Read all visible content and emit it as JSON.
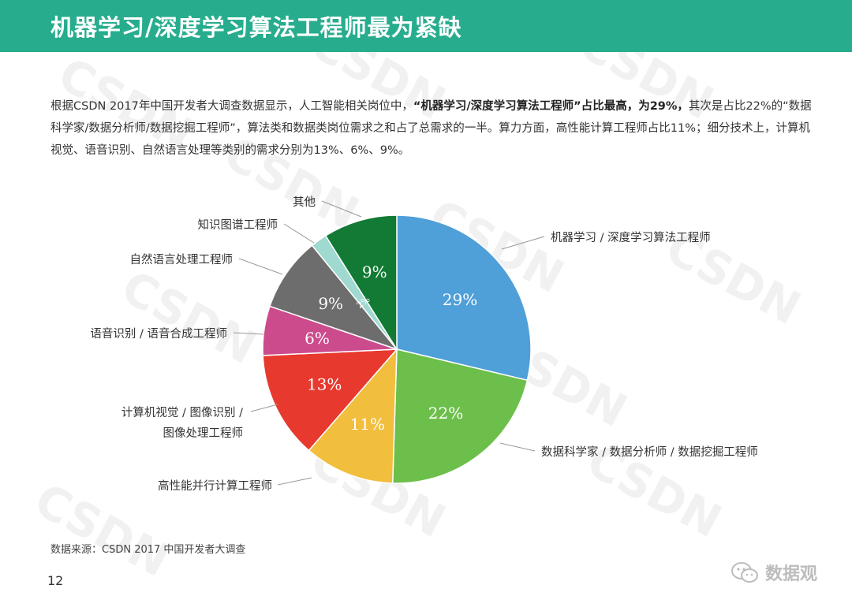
{
  "header": {
    "title": "机器学习/深度学习算法工程师最为紧缺"
  },
  "intro": {
    "part1": "根据CSDN 2017年中国开发者大调查数据显示，人工智能相关岗位中，",
    "bold1": "“机器学习/深度学习算法工程师”占比最高，为29%，",
    "part2": "其次是占比22%的“数据科学家/数据分析师/数据挖掘工程师”，算法类和数据类岗位需求之和占了总需求的一半。算力方面，高性能计算工程师占比11%；细分技术上，计算机视觉、语音识别、自然语言处理等类别的需求分别为13%、6%、9%。"
  },
  "chart_data": {
    "type": "pie",
    "start_angle_deg": 0,
    "direction": "clockwise",
    "categories": [
      "机器学习 / 深度学习算法工程师",
      "数据科学家 / 数据分析师 / 数据挖掘工程师",
      "高性能并行计算工程师",
      "计算机视觉 / 图像识别 / 图像处理工程师",
      "语音识别 / 语音合成工程师",
      "自然语言处理工程师",
      "知识图谱工程师",
      "其他"
    ],
    "display_labels": [
      [
        "机器学习 / 深度学习算法工程师"
      ],
      [
        "数据科学家 / 数据分析师 / 数据挖掘工程师"
      ],
      [
        "高性能并行计算工程师"
      ],
      [
        "计算机视觉 / 图像识别 /",
        "图像处理工程师"
      ],
      [
        "语音识别 / 语音合成工程师"
      ],
      [
        "自然语言处理工程师"
      ],
      [
        "知识图谱工程师"
      ],
      [
        "其他"
      ]
    ],
    "values": [
      29,
      22,
      11,
      13,
      6,
      9,
      2,
      9
    ],
    "data_labels": [
      "29%",
      "22%",
      "11%",
      "13%",
      "6%",
      "9%",
      "2%",
      "9%"
    ],
    "colors": [
      "#4f9fd8",
      "#6cbf4a",
      "#f2be3e",
      "#e8392f",
      "#cc4b8c",
      "#6d6d6d",
      "#9fd9d0",
      "#127a34"
    ]
  },
  "source": "数据来源：CSDN  2017 中国开发者大调查",
  "page_number": "12",
  "brand": {
    "icon": "wechat-icon",
    "name": "数据观"
  },
  "watermark_text": "CSDN"
}
